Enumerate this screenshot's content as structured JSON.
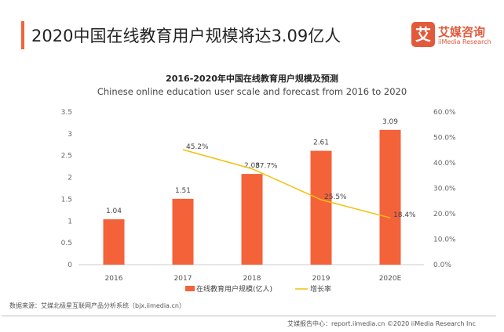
{
  "header": {
    "title": "2020中国在线教育用户规模将达3.09亿人",
    "logo_mark": "艾",
    "logo_cn": "艾媒咨询",
    "logo_en": "iiMedia Research"
  },
  "chart_data": {
    "type": "bar+line",
    "title": "2016-2020年中国在线教育用户规模及预测",
    "subtitle": "Chinese online education user scale and forecast from 2016 to 2020",
    "categories": [
      "2016",
      "2017",
      "2018",
      "2019",
      "2020E"
    ],
    "series": [
      {
        "name": "在线教育用户规模(亿人)",
        "type": "bar",
        "axis": "left",
        "color": "#f4623a",
        "values": [
          1.04,
          1.51,
          2.08,
          2.61,
          3.09
        ],
        "labels": [
          "1.04",
          "1.51",
          "2.08",
          "2.61",
          "3.09"
        ]
      },
      {
        "name": "增长率",
        "type": "line",
        "axis": "right",
        "color": "#f2c10f",
        "values": [
          null,
          45.2,
          37.7,
          25.5,
          18.4
        ],
        "labels": [
          "",
          "45.2%",
          "37.7%",
          "25.5%",
          "18.4%"
        ]
      }
    ],
    "left_axis": {
      "ylim": [
        0,
        3.5
      ],
      "ticks": [
        "0",
        "0.5",
        "1",
        "1.5",
        "2",
        "2.5",
        "3",
        "3.5"
      ]
    },
    "right_axis": {
      "ylim": [
        0,
        60
      ],
      "ticks": [
        "0.0%",
        "10.0%",
        "20.0%",
        "30.0%",
        "40.0%",
        "50.0%",
        "60.0%"
      ]
    },
    "legend_placement": "bottom",
    "grid": false
  },
  "source": "数据来源：艾媒北极星互联网产品分析系统（bjx.iimedia.cn）",
  "footer": "艾媒报告中心：report.iimedia.cn  ©2020 iiMedia Research Inc"
}
